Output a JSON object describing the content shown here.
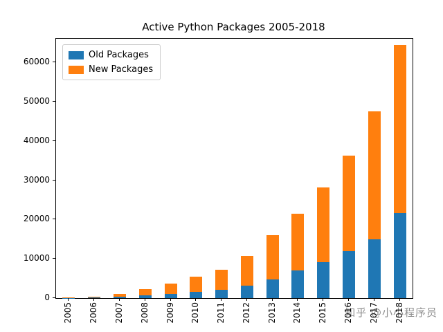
{
  "chart_data": {
    "type": "bar",
    "stacked": true,
    "title": "Active Python Packages 2005-2018",
    "categories": [
      "2005",
      "2006",
      "2007",
      "2008",
      "2009",
      "2010",
      "2011",
      "2012",
      "2013",
      "2014",
      "2015",
      "2016",
      "2017",
      "2018"
    ],
    "series": [
      {
        "name": "Old Packages",
        "color": "#1f77b4",
        "values": [
          30,
          120,
          400,
          700,
          1000,
          1600,
          2200,
          3200,
          4700,
          7000,
          9100,
          12000,
          15000,
          21700
        ]
      },
      {
        "name": "New Packages",
        "color": "#ff7f0e",
        "values": [
          70,
          300,
          700,
          1600,
          2700,
          3800,
          5000,
          7600,
          11300,
          14400,
          19000,
          24200,
          32500,
          42800
        ]
      }
    ],
    "totals": [
      100,
      420,
      1100,
      2300,
      3700,
      5400,
      7200,
      10800,
      16000,
      21400,
      28100,
      36200,
      47500,
      64500
    ],
    "xlabel": "",
    "ylabel": "",
    "ylim": [
      0,
      66000
    ],
    "yticks": [
      0,
      10000,
      20000,
      30000,
      40000,
      50000,
      60000
    ],
    "legend_position": "upper left",
    "grid": false
  },
  "watermark": {
    "text": "知乎 @小小程序员"
  }
}
